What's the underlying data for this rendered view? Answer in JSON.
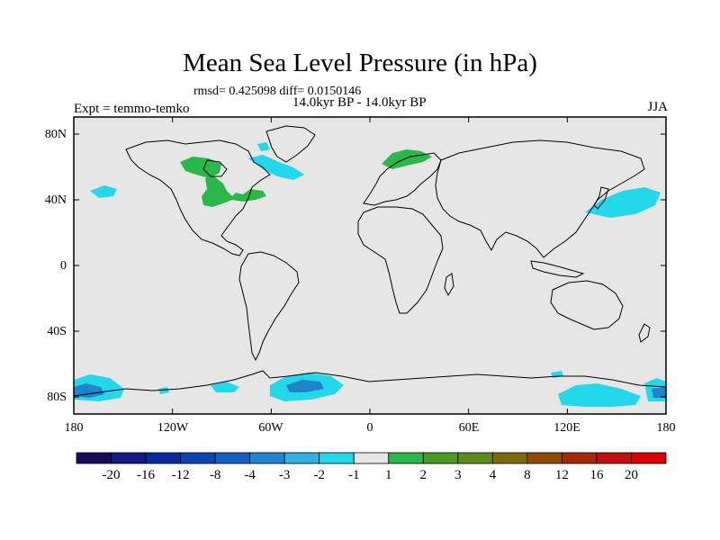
{
  "header": {
    "title": "Mean Sea Level Pressure (in hPa)",
    "stats": "rmsd= 0.425098 diff= 0.0150146",
    "period": "14.0kyr BP - 14.0kyr BP",
    "experiment": "Expt = temmo-temko",
    "season": "JJA"
  },
  "map": {
    "projection": "cylindrical equidistant",
    "background_color": "#e6e6e6",
    "lon_ticks": [
      "180",
      "120W",
      "60W",
      "0",
      "60E",
      "120E",
      "180"
    ],
    "lat_ticks": [
      "80N",
      "40N",
      "0",
      "40S",
      "80S"
    ]
  },
  "colorbar": {
    "labels": [
      "-20",
      "-16",
      "-12",
      "-8",
      "-4",
      "-3",
      "-2",
      "-1",
      "1",
      "2",
      "3",
      "4",
      "8",
      "12",
      "16",
      "20"
    ],
    "colors": [
      "#1a0a5c",
      "#111a80",
      "#0b2a9a",
      "#0a46b0",
      "#1160c0",
      "#1f84cc",
      "#33aee0",
      "#22d8ea",
      "#e6e6e6",
      "#2ab84a",
      "#4a9a2a",
      "#5e8a1a",
      "#7a6a0a",
      "#8e4a06",
      "#a42a06",
      "#c01010",
      "#d80000"
    ]
  },
  "anomalies": [
    {
      "name": "north-america-interior",
      "level": "2",
      "color": "#2ab84a"
    },
    {
      "name": "hudson-bay",
      "level": "2",
      "color": "#2ab84a"
    },
    {
      "name": "scandinavia",
      "level": "2",
      "color": "#2ab84a"
    },
    {
      "name": "labrador-sea",
      "level": "-1",
      "color": "#22d8ea"
    },
    {
      "name": "north-pacific-east",
      "level": "-1",
      "color": "#22d8ea"
    },
    {
      "name": "north-pacific-west",
      "level": "-1",
      "color": "#22d8ea"
    },
    {
      "name": "southern-ocean-ross",
      "level": "-3",
      "color": "#1f84cc"
    },
    {
      "name": "southern-ocean-weddell",
      "level": "-3",
      "color": "#1f84cc"
    },
    {
      "name": "southern-ocean-indian",
      "level": "-1",
      "color": "#22d8ea"
    }
  ]
}
